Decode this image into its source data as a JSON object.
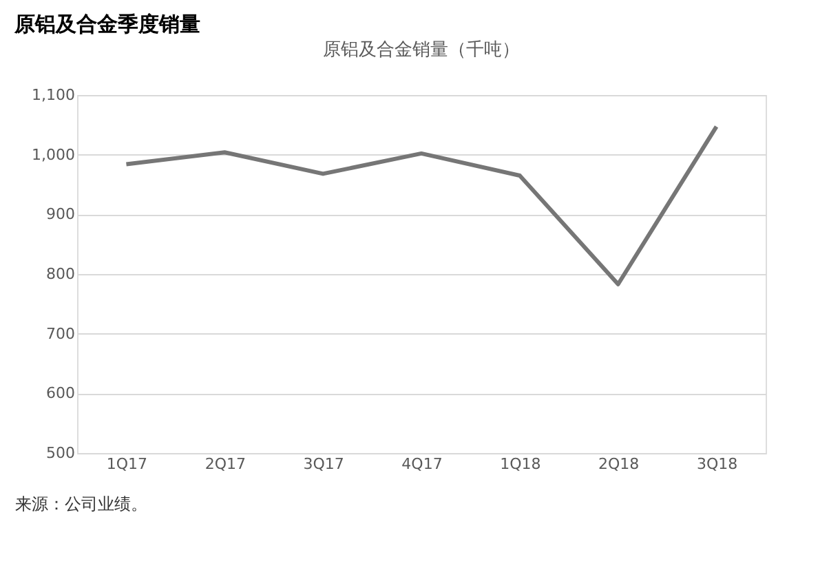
{
  "chart_data": {
    "type": "line",
    "title": "原铝及合金季度销量",
    "subtitle": "原铝及合金销量（千吨）",
    "categories": [
      "1Q17",
      "2Q17",
      "3Q17",
      "4Q17",
      "1Q18",
      "2Q18",
      "3Q18"
    ],
    "series": [
      {
        "color": "#767676",
        "values": [
          984,
          1004,
          968,
          1002,
          965,
          783,
          1047
        ]
      }
    ],
    "ylim": [
      500,
      1100
    ],
    "yticks": [
      500,
      600,
      700,
      800,
      900,
      {
        "value": 1000,
        "label": "1,000"
      },
      {
        "value": 1100,
        "label": "1,100"
      }
    ],
    "grid": "y",
    "marker": "none",
    "line_style": "solid",
    "annotations": [
      "来源：公司业绩。"
    ]
  }
}
